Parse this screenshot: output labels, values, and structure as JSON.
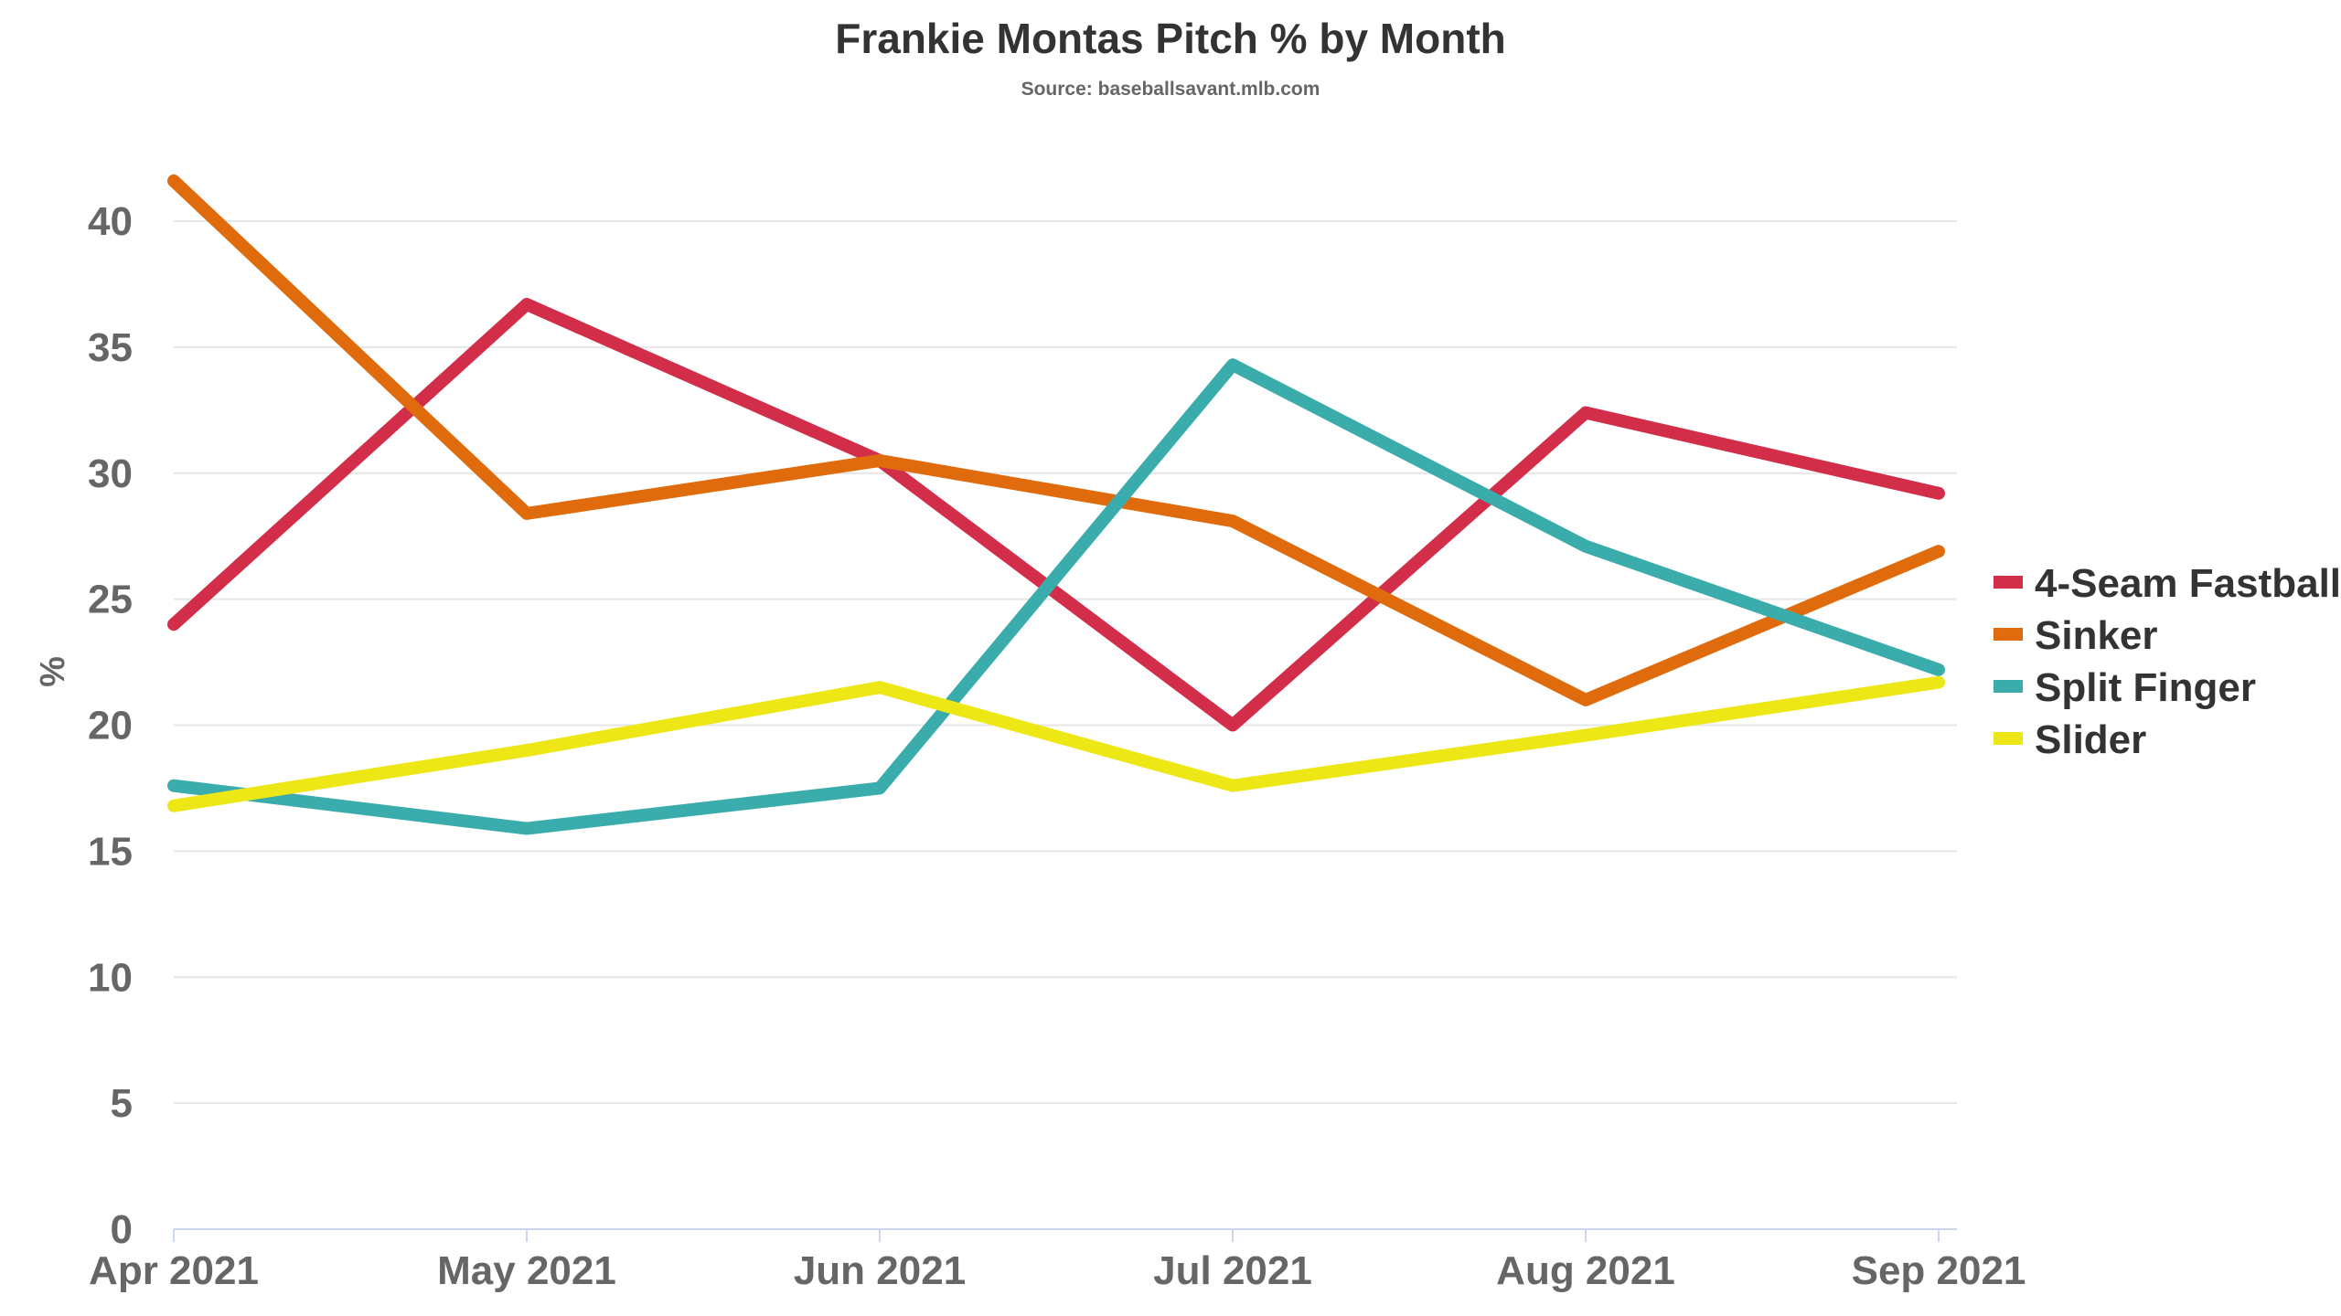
{
  "chart_data": {
    "type": "line",
    "title": "Frankie Montas Pitch % by Month",
    "subtitle": "Source: baseballsavant.mlb.com",
    "xlabel": "",
    "ylabel": "%",
    "categories": [
      "Apr 2021",
      "May 2021",
      "Jun 2021",
      "Jul 2021",
      "Aug 2021",
      "Sep 2021"
    ],
    "ylim": [
      0,
      40
    ],
    "yticks": [
      0,
      5,
      10,
      15,
      20,
      25,
      30,
      35,
      40
    ],
    "grid": true,
    "legend": "right",
    "series": [
      {
        "name": "4-Seam Fastball",
        "color": "#d22d49",
        "values": [
          24.0,
          36.7,
          30.5,
          20.0,
          32.4,
          29.2
        ]
      },
      {
        "name": "Sinker",
        "color": "#e06b0d",
        "values": [
          41.6,
          28.4,
          30.5,
          28.1,
          21.0,
          26.9
        ]
      },
      {
        "name": "Split Finger",
        "color": "#3bacac",
        "values": [
          17.6,
          15.9,
          17.5,
          34.3,
          27.1,
          22.2
        ]
      },
      {
        "name": "Slider",
        "color": "#eee716",
        "values": [
          16.8,
          19.0,
          21.5,
          17.6,
          19.6,
          21.7
        ]
      }
    ]
  }
}
